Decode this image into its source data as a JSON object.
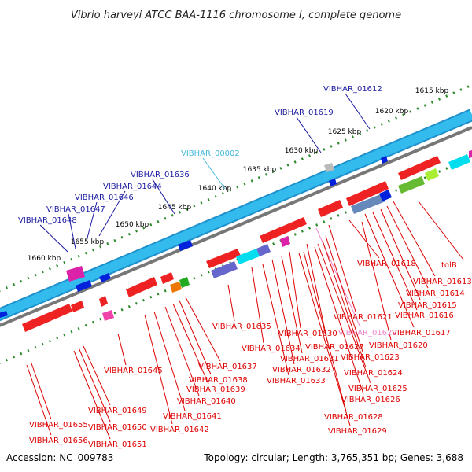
{
  "title": "Vibrio harveyi ATCC BAA-1116 chromosome I, complete genome",
  "footer": {
    "accession": "Accession: NC_009783",
    "summary": "Topology: circular; Length: 3,765,351 bp; Genes: 3,688"
  },
  "colors": {
    "forward_label": "#1a1aa0",
    "reverse_label": "#dd0000",
    "highlight_label": "#44b8dd",
    "pink_label": "#ee88cc",
    "backbone": "#33bbee",
    "ring": "#777777",
    "tick": "#2a8a2a"
  },
  "kbp_labels": [
    "1615 kbp",
    "1620 kbp",
    "1625 kbp",
    "1630 kbp",
    "1635 kbp",
    "1640 kbp",
    "1645 kbp",
    "1650 kbp",
    "1655 kbp",
    "1660 kbp"
  ],
  "forward_genes": [
    "VIBHAR_01612",
    "VIBHAR_01619",
    "VIBHAR_00002",
    "VIBHAR_01636",
    "VIBHAR_01644",
    "VIBHAR_01646",
    "VIBHAR_01647",
    "VIBHAR_01648"
  ],
  "reverse_genes_right": [
    "tolB",
    "VIBHAR_01613",
    "VIBHAR_01614",
    "VIBHAR_01615",
    "VIBHAR_01616",
    "VIBHAR_01617",
    "VIBHAR_01618",
    "VIBHAR_01620",
    "VIBHAR_01621",
    "VIBHAR_01622",
    "VIBHAR_01623",
    "VIBHAR_01624",
    "VIBHAR_01625",
    "VIBHAR_01626"
  ],
  "reverse_genes_middle": [
    "VIBHAR_01627",
    "VIBHAR_01628",
    "VIBHAR_01629",
    "VIBHAR_01630",
    "VIBHAR_01631",
    "VIBHAR_01632",
    "VIBHAR_01633",
    "VIBHAR_01634",
    "VIBHAR_01635",
    "VIBHAR_01637",
    "VIBHAR_01638",
    "VIBHAR_01639",
    "VIBHAR_01640",
    "VIBHAR_01641",
    "VIBHAR_01642"
  ],
  "reverse_genes_left": [
    "VIBHAR_01645",
    "VIBHAR_01649",
    "VIBHAR_01650",
    "VIBHAR_01651",
    "VIBHAR_01655",
    "VIBHAR_01656"
  ]
}
